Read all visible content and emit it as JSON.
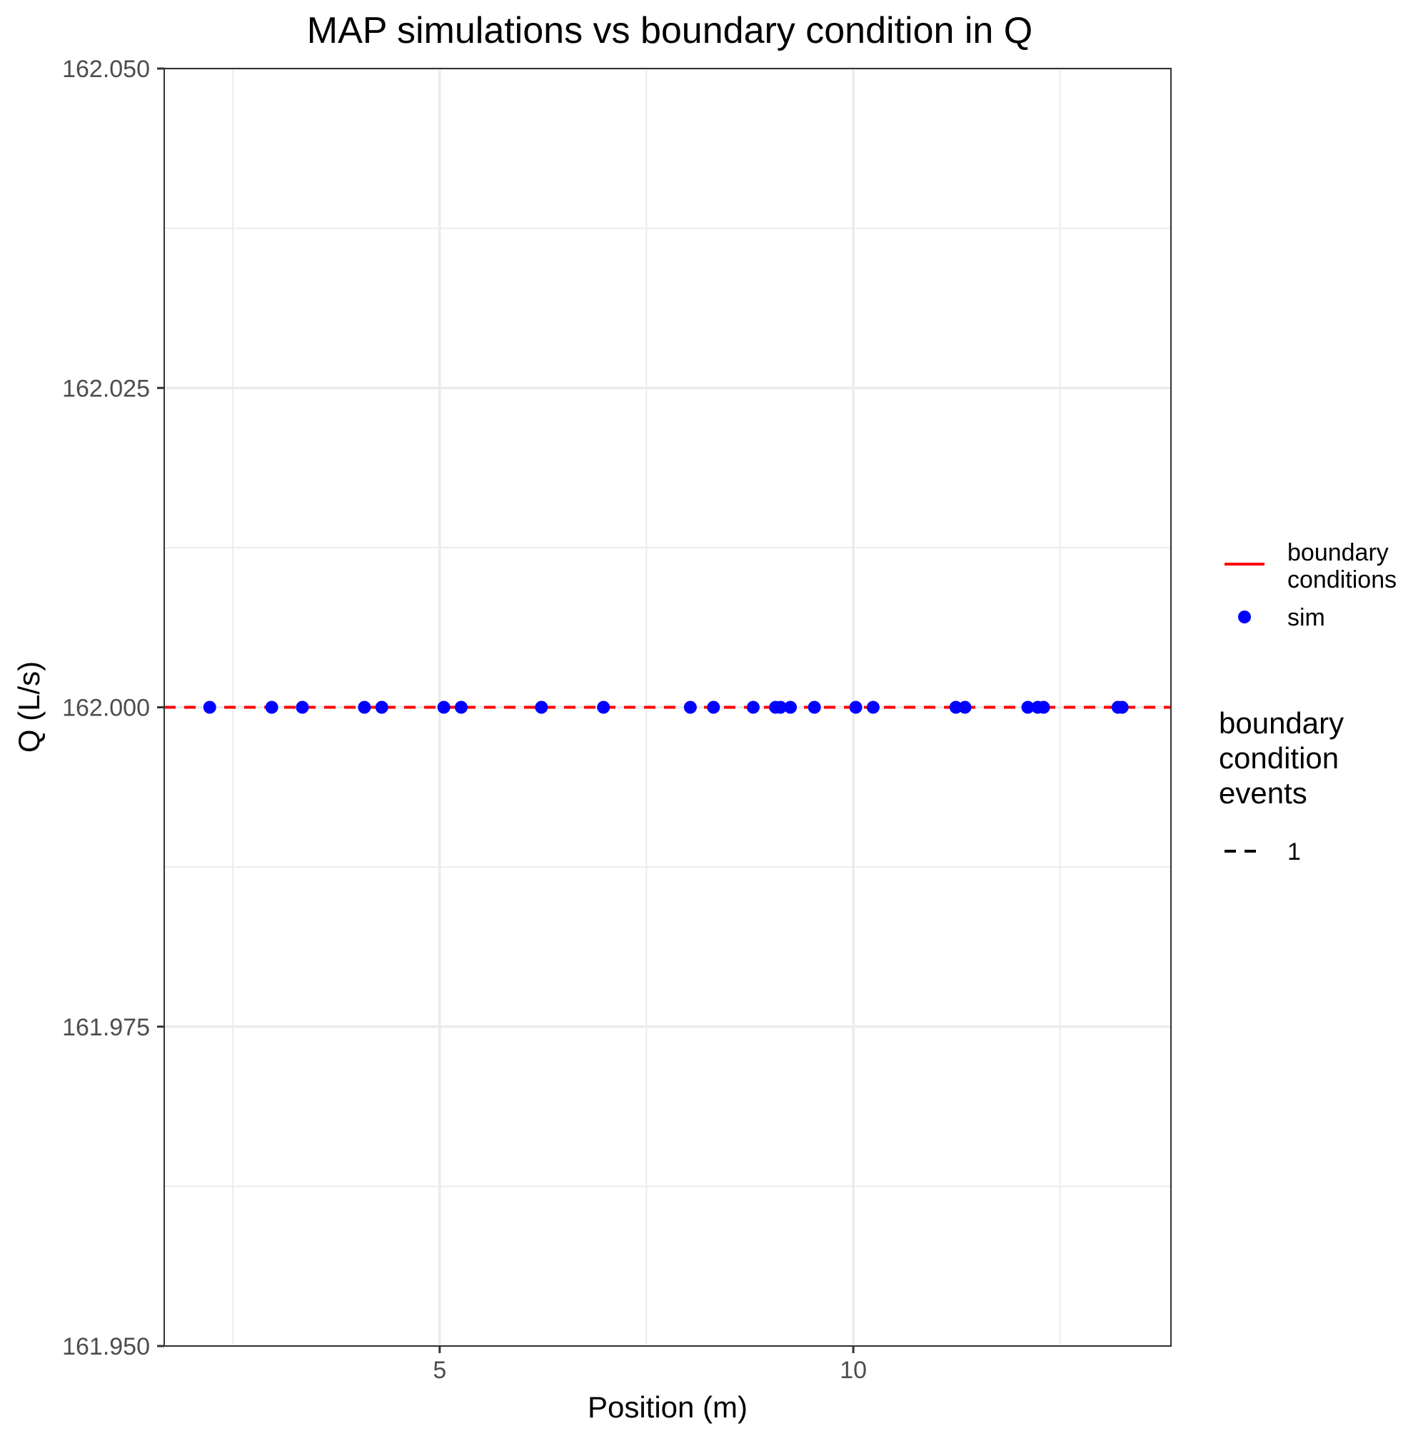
{
  "chart_data": {
    "type": "scatter",
    "title": "MAP simulations vs boundary condition in Q",
    "xlabel": "Position (m)",
    "ylabel": "Q (L/s)",
    "xlim": [
      1.67,
      13.84
    ],
    "ylim": [
      161.95,
      162.05
    ],
    "x_ticks": [
      5,
      10
    ],
    "x_tick_labels": [
      "5",
      "10"
    ],
    "x_minor_gridlines": [
      2.5,
      7.5,
      12.5
    ],
    "y_ticks": [
      161.95,
      161.975,
      162.0,
      162.025,
      162.05
    ],
    "y_tick_labels": [
      "161.950",
      "161.975",
      "162.000",
      "162.025",
      "162.050"
    ],
    "y_minor_gridlines": [
      161.9625,
      161.9875,
      162.0125,
      162.0375
    ],
    "grid": true,
    "series": [
      {
        "name": "sim",
        "kind": "points",
        "color": "#0000ff",
        "x": [
          2.22,
          2.97,
          3.34,
          4.09,
          4.3,
          5.05,
          5.26,
          6.23,
          6.98,
          8.03,
          8.31,
          8.79,
          9.06,
          9.12,
          9.24,
          9.53,
          10.03,
          10.24,
          11.24,
          11.35,
          12.11,
          12.23,
          12.3,
          13.2,
          13.25
        ],
        "y": [
          162.0,
          162.0,
          162.0,
          162.0,
          162.0,
          162.0,
          162.0,
          162.0,
          162.0,
          162.0,
          162.0,
          162.0,
          162.0,
          162.0,
          162.0,
          162.0,
          162.0,
          162.0,
          162.0,
          162.0,
          162.0,
          162.0,
          162.0,
          162.0,
          162.0
        ]
      },
      {
        "name": "boundary conditions",
        "kind": "hline",
        "color": "#ff0000",
        "linetype": "dashed",
        "y": 162.0
      }
    ],
    "legend": {
      "placement": "right",
      "colour_entries": [
        {
          "label_lines": [
            "boundary",
            "conditions"
          ],
          "key": "line",
          "color": "#ff0000"
        },
        {
          "label_lines": [
            "sim"
          ],
          "key": "point",
          "color": "#0000ff"
        }
      ],
      "linetype_title_lines": [
        "boundary",
        "condition",
        "events"
      ],
      "linetype_entries": [
        {
          "label": "1",
          "key": "dashed-line",
          "color": "#000000"
        }
      ]
    }
  }
}
